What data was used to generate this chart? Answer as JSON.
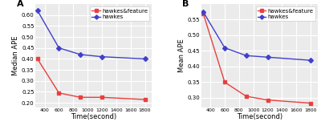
{
  "x": [
    300,
    600,
    900,
    1200,
    1800
  ],
  "chartA": {
    "title": "A",
    "ylabel": "Median APE",
    "xlabel": "Time(second)",
    "ylim": [
      0.18,
      0.65
    ],
    "yticks": [
      0.2,
      0.25,
      0.3,
      0.35,
      0.4,
      0.45,
      0.5,
      0.55,
      0.6
    ],
    "hawkes_feature": [
      0.4,
      0.245,
      0.225,
      0.225,
      0.215
    ],
    "hawkes": [
      0.62,
      0.45,
      0.42,
      0.41,
      0.4
    ]
  },
  "chartB": {
    "title": "B",
    "ylabel": "Mean APE",
    "xlabel": "Time(second)",
    "ylim": [
      0.27,
      0.6
    ],
    "yticks": [
      0.3,
      0.35,
      0.4,
      0.45,
      0.5,
      0.55
    ],
    "hawkes_feature": [
      0.57,
      0.35,
      0.305,
      0.293,
      0.283
    ],
    "hawkes": [
      0.575,
      0.46,
      0.435,
      0.43,
      0.42
    ]
  },
  "xticks": [
    400,
    600,
    800,
    1000,
    1200,
    1400,
    1600,
    1800
  ],
  "color_red": "#e84040",
  "color_blue": "#4040cc",
  "marker_size": 3,
  "line_width": 1.0,
  "legend_hawkes_feature": "hawkes&feature",
  "legend_hawkes": "hawkes",
  "bg_color": "#ebebeb",
  "grid_color": "white",
  "label_fontsize": 6.0,
  "tick_fontsize": 5.0,
  "legend_fontsize": 5.0,
  "title_fontsize": 8,
  "xlim": [
    270,
    1900
  ]
}
